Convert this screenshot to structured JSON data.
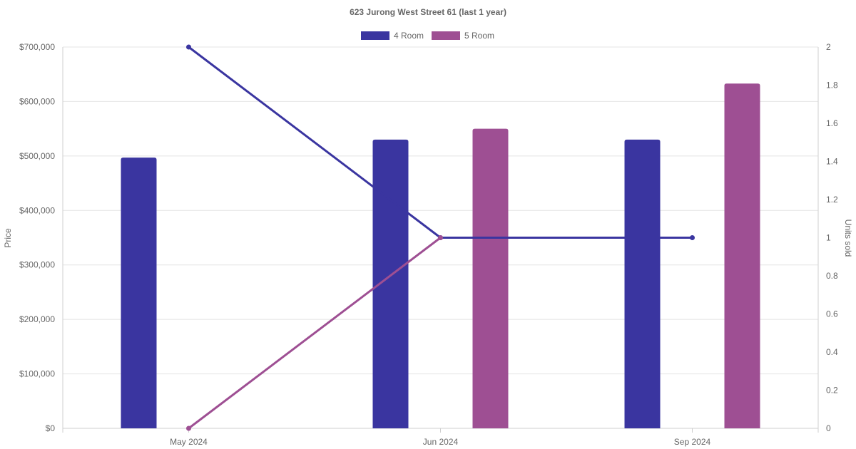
{
  "chart_data": {
    "type": "bar",
    "title": "623 Jurong West Street 61 (last 1 year)",
    "categories": [
      "May 2024",
      "Jun 2024",
      "Sep 2024"
    ],
    "ylabel": "Price",
    "y2label": "Units sold",
    "ylim": [
      0,
      700000
    ],
    "y2lim": [
      0,
      2
    ],
    "y_ticks": [
      "$0",
      "$100,000",
      "$200,000",
      "$300,000",
      "$400,000",
      "$500,000",
      "$600,000",
      "$700,000"
    ],
    "y2_ticks": [
      "0",
      "0.2",
      "0.4",
      "0.6",
      "0.8",
      "1",
      "1.2",
      "1.4",
      "1.6",
      "1.8",
      "2"
    ],
    "grid": true,
    "legend_position": "top-center",
    "series": [
      {
        "name": "4 Room",
        "color": "#3a35a0",
        "price": [
          497000,
          530000,
          530000
        ],
        "units_sold": [
          2,
          1,
          1
        ]
      },
      {
        "name": "5 Room",
        "color": "#9e4f93",
        "price": [
          null,
          550000,
          633000
        ],
        "units_sold": [
          0,
          1,
          null
        ]
      }
    ]
  }
}
